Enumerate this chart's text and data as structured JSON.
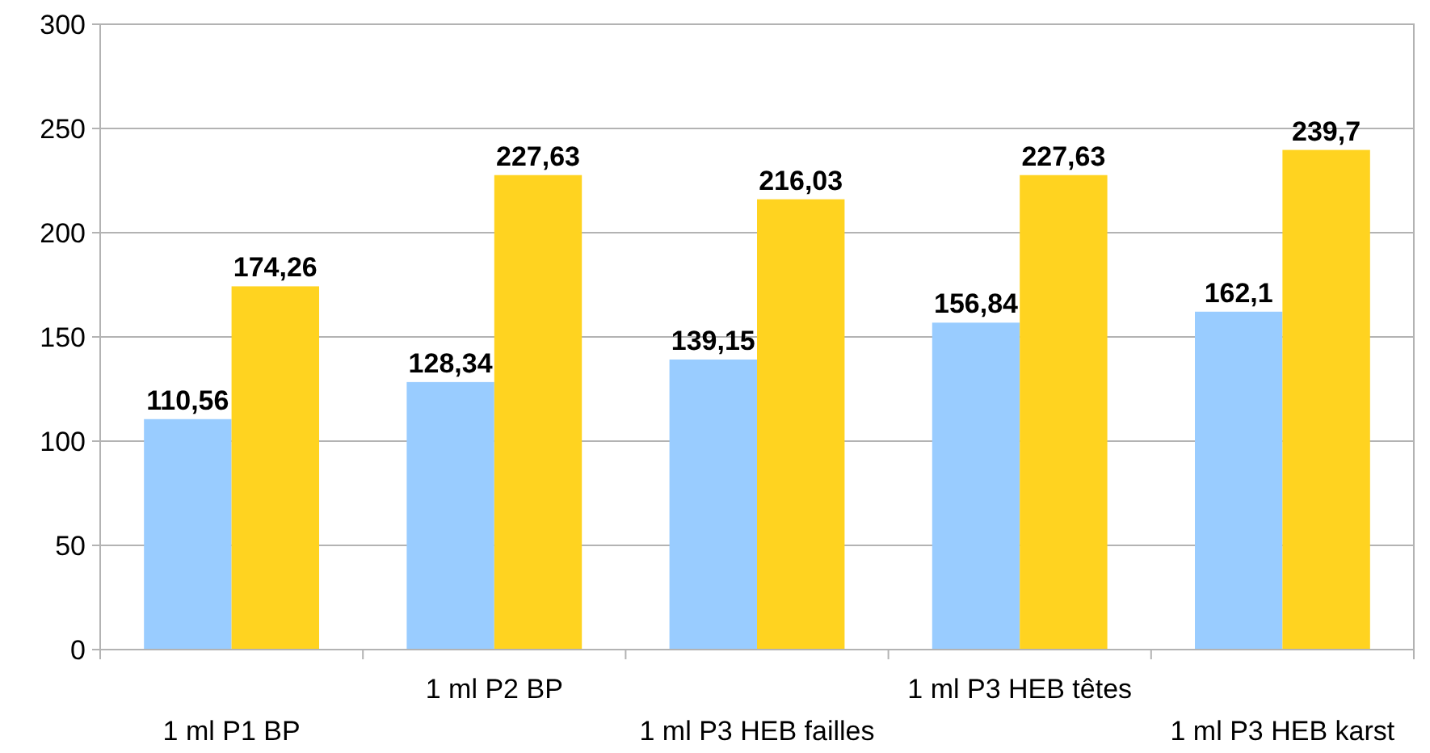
{
  "chart_data": {
    "type": "bar",
    "categories": [
      "1 ml P1 BP",
      "1 ml P2 BP",
      "1 ml P3 HEB failles",
      "1 ml P3 HEB têtes",
      "1 ml P3 HEB karst"
    ],
    "series": [
      {
        "color": "#99ccff",
        "values": [
          110.56,
          128.34,
          139.15,
          156.84,
          162.1
        ],
        "value_labels": [
          "110,56",
          "128,34",
          "139,15",
          "156,84",
          "162,1"
        ]
      },
      {
        "color": "#ffd320",
        "values": [
          174.26,
          227.63,
          216.03,
          227.63,
          239.7
        ],
        "value_labels": [
          "174,26",
          "227,63",
          "216,03",
          "227,63",
          "239,7"
        ]
      }
    ],
    "ylim": [
      0,
      300
    ],
    "yticks": [
      0,
      50,
      100,
      150,
      200,
      250,
      300
    ],
    "grid": "y"
  }
}
